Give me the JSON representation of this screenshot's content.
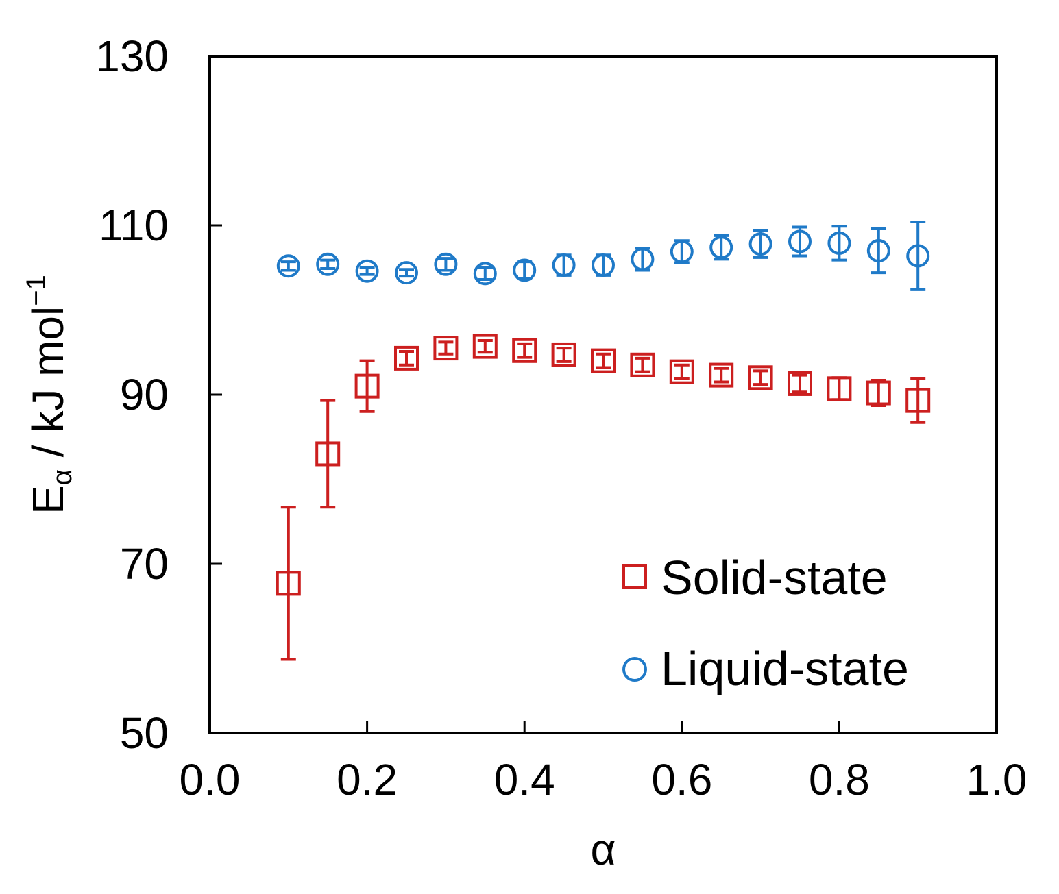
{
  "chart_data": {
    "type": "scatter",
    "title": "",
    "xlabel": "α",
    "ylabel": {
      "main": "E",
      "subscript": "α",
      "unit": " / kJ mol",
      "superscript": "−1"
    },
    "xlim": [
      0.0,
      1.0
    ],
    "ylim": [
      50,
      130
    ],
    "xticks": [
      "0.0",
      "0.2",
      "0.4",
      "0.6",
      "0.8",
      "1.0"
    ],
    "xtick_values": [
      0.0,
      0.2,
      0.4,
      0.6,
      0.8,
      1.0
    ],
    "yticks": [
      "50",
      "70",
      "90",
      "110",
      "130"
    ],
    "ytick_values": [
      50,
      70,
      90,
      110,
      130
    ],
    "grid": false,
    "legend_position": "bottom-right",
    "series": [
      {
        "name": "Solid-state",
        "marker": "square",
        "color": "#cc1f1f",
        "x": [
          0.1,
          0.15,
          0.2,
          0.25,
          0.3,
          0.35,
          0.4,
          0.45,
          0.5,
          0.55,
          0.6,
          0.65,
          0.7,
          0.75,
          0.8,
          0.85,
          0.9
        ],
        "y": [
          67.7,
          83.0,
          91.0,
          94.3,
          95.5,
          95.7,
          95.2,
          94.7,
          94.0,
          93.5,
          92.7,
          92.3,
          92.0,
          91.3,
          90.7,
          90.2,
          89.3
        ],
        "err": [
          9.0,
          6.3,
          3.0,
          0.8,
          0.7,
          0.7,
          0.8,
          0.8,
          0.8,
          0.8,
          0.8,
          0.8,
          0.8,
          1.0,
          1.3,
          1.5,
          2.6
        ]
      },
      {
        "name": "Liquid-state",
        "marker": "circle",
        "color": "#1f7ac8",
        "x": [
          0.1,
          0.15,
          0.2,
          0.25,
          0.3,
          0.35,
          0.4,
          0.45,
          0.5,
          0.55,
          0.6,
          0.65,
          0.7,
          0.75,
          0.8,
          0.85,
          0.9
        ],
        "y": [
          105.2,
          105.4,
          104.6,
          104.4,
          105.4,
          104.3,
          104.7,
          105.3,
          105.3,
          106.0,
          106.9,
          107.4,
          107.8,
          108.1,
          107.9,
          107.0,
          106.4
        ],
        "err": [
          0.5,
          0.5,
          0.4,
          0.4,
          0.7,
          0.7,
          1.0,
          1.2,
          1.2,
          1.3,
          1.3,
          1.4,
          1.6,
          1.7,
          2.0,
          2.6,
          4.0
        ]
      }
    ]
  }
}
